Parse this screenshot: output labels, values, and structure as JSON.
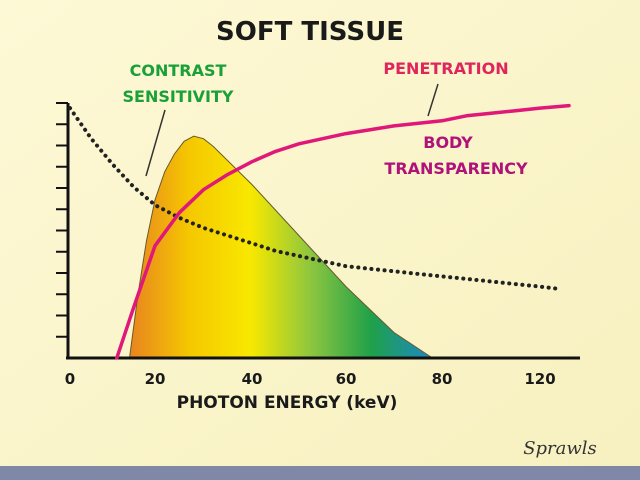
{
  "chart_data": {
    "type": "line",
    "title": "SOFT TISSUE",
    "xlabel": "PHOTON ENERGY (keV)",
    "ylabel": "",
    "x_ticks": [
      0,
      20,
      40,
      60,
      80,
      120
    ],
    "y_tick_count": 12,
    "grid": false,
    "series": [
      {
        "name": "CONTRAST SENSITIVITY",
        "style": "dotted",
        "color": "#222222",
        "x": [
          0,
          5,
          10,
          15,
          20,
          25,
          30,
          35,
          40,
          45,
          50,
          55,
          60,
          65,
          70,
          75,
          80,
          90,
          100,
          110,
          120,
          125
        ],
        "y": [
          0.98,
          0.86,
          0.76,
          0.67,
          0.6,
          0.55,
          0.51,
          0.48,
          0.45,
          0.42,
          0.4,
          0.38,
          0.36,
          0.35,
          0.34,
          0.33,
          0.32,
          0.31,
          0.3,
          0.29,
          0.28,
          0.27
        ]
      },
      {
        "name": "PENETRATION",
        "style": "solid",
        "color": "#e0187a",
        "x": [
          11,
          15,
          20,
          25,
          30,
          35,
          40,
          45,
          50,
          60,
          70,
          80,
          90,
          100,
          110,
          120,
          127
        ],
        "y": [
          0.0,
          0.2,
          0.44,
          0.57,
          0.66,
          0.72,
          0.77,
          0.81,
          0.84,
          0.88,
          0.91,
          0.93,
          0.95,
          0.96,
          0.97,
          0.98,
          0.99
        ]
      },
      {
        "name": "BODY TRANSPARENCY",
        "style": "filled-area",
        "color_stops": [
          "#e88420",
          "#f5c800",
          "#f8e800",
          "#8cc63f",
          "#1fa04a",
          "#1e88c8"
        ],
        "x": [
          14,
          16,
          18,
          20,
          22,
          24,
          26,
          28,
          30,
          32,
          40,
          50,
          60,
          70,
          78
        ],
        "y": [
          0.0,
          0.25,
          0.46,
          0.62,
          0.73,
          0.8,
          0.85,
          0.87,
          0.86,
          0.83,
          0.68,
          0.48,
          0.28,
          0.1,
          0.0
        ]
      }
    ],
    "annotations": [
      {
        "text": "CONTRAST",
        "color": "#1aa038"
      },
      {
        "text": "SENSITIVITY",
        "color": "#1aa038"
      },
      {
        "text": "PENETRATION",
        "color": "#e0245c"
      },
      {
        "text": "BODY",
        "color": "#b0127a"
      },
      {
        "text": "TRANSPARENCY",
        "color": "#b0127a"
      }
    ],
    "signature": "Sprawls"
  }
}
